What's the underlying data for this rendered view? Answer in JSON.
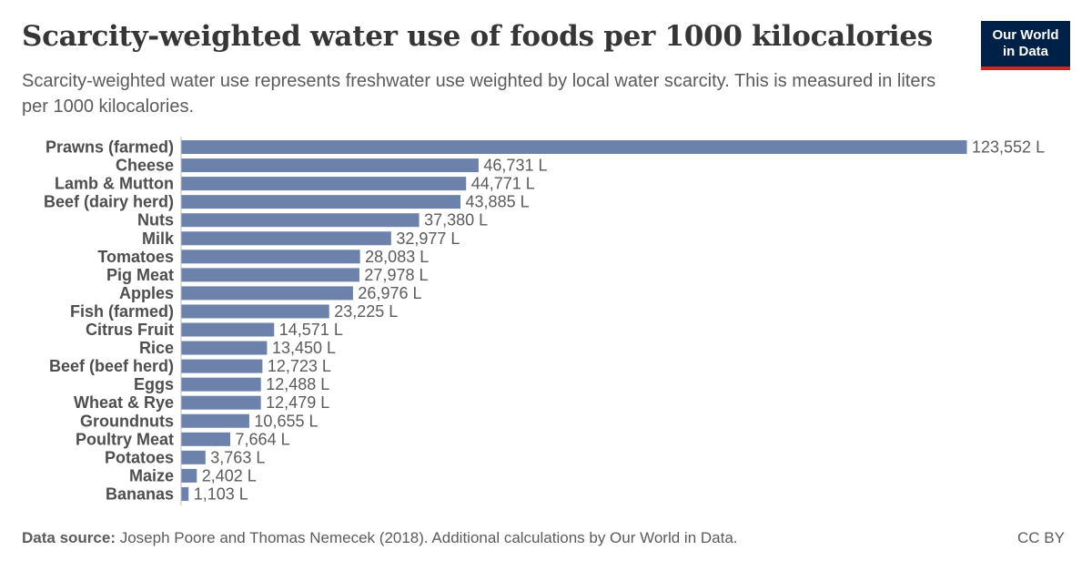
{
  "header": {
    "title": "Scarcity-weighted water use of foods per 1000 kilocalories",
    "subtitle": "Scarcity-weighted water use represents freshwater use weighted by local water scarcity. This is measured in liters per 1000 kilocalories."
  },
  "logo": {
    "line1": "Our World",
    "line2": "in Data"
  },
  "footer": {
    "source_label": "Data source:",
    "source_text": "Joseph Poore and Thomas Nemecek (2018). Additional calculations by Our World in Data.",
    "license": "CC BY"
  },
  "colors": {
    "bar": "#6d82ab",
    "logo_bg": "#002147",
    "logo_accent": "#ce261e"
  },
  "chart_data": {
    "type": "bar",
    "orientation": "horizontal",
    "unit_suffix": " L",
    "categories": [
      "Prawns (farmed)",
      "Cheese",
      "Lamb & Mutton",
      "Beef (dairy herd)",
      "Nuts",
      "Milk",
      "Tomatoes",
      "Pig Meat",
      "Apples",
      "Fish (farmed)",
      "Citrus Fruit",
      "Rice",
      "Beef (beef herd)",
      "Eggs",
      "Wheat & Rye",
      "Groundnuts",
      "Poultry Meat",
      "Potatoes",
      "Maize",
      "Bananas"
    ],
    "values": [
      123552,
      46731,
      44771,
      43885,
      37380,
      32977,
      28083,
      27978,
      26976,
      23225,
      14571,
      13450,
      12723,
      12488,
      12479,
      10655,
      7664,
      3763,
      2402,
      1103
    ],
    "labels": [
      "123,552 L",
      "46,731 L",
      "44,771 L",
      "43,885 L",
      "37,380 L",
      "32,977 L",
      "28,083 L",
      "27,978 L",
      "26,976 L",
      "23,225 L",
      "14,571 L",
      "13,450 L",
      "12,723 L",
      "12,488 L",
      "12,479 L",
      "10,655 L",
      "7,664 L",
      "3,763 L",
      "2,402 L",
      "1,103 L"
    ],
    "xlim": [
      0,
      123552
    ],
    "grid": false,
    "legend": "none"
  }
}
